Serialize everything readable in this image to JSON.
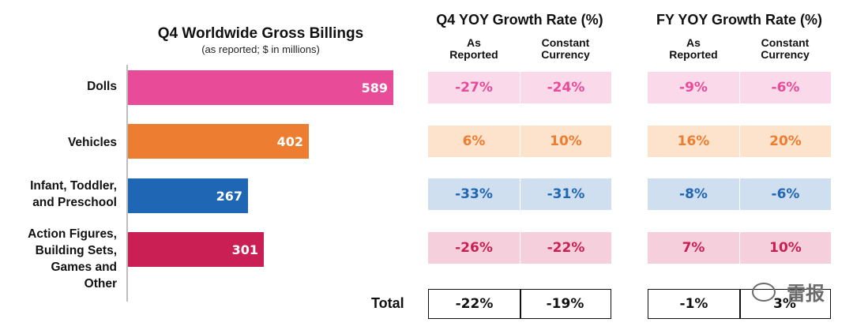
{
  "chart_data": {
    "type": "bar",
    "orientation": "horizontal",
    "title": "Q4 Worldwide Gross Billings",
    "subtitle": "(as reported; $ in millions)",
    "categories": [
      "Dolls",
      "Vehicles",
      "Infant, Toddler, and Preschool",
      "Action Figures, Building Sets, Games and Other"
    ],
    "category_lines": [
      [
        "Dolls"
      ],
      [
        "Vehicles"
      ],
      [
        "Infant, Toddler,",
        "and Preschool"
      ],
      [
        "Action Figures,",
        "Building Sets,",
        "Games and",
        "Other"
      ]
    ],
    "values": [
      589,
      402,
      267,
      301
    ],
    "value_labels": [
      "589",
      "402",
      "267",
      "301"
    ],
    "xlim": [
      0,
      589
    ]
  },
  "colors": {
    "bars": [
      "#e84c98",
      "#ed7d31",
      "#1f67b5",
      "#c91f55"
    ],
    "cell_bg": [
      "#fad9ea",
      "#fde3cc",
      "#cfdff0",
      "#f5d0dc"
    ],
    "cell_text": [
      "#e84c98",
      "#ed7d31",
      "#1f67b5",
      "#c91f55"
    ]
  },
  "growth": {
    "q4_title": "Q4 YOY Growth Rate (%)",
    "fy_title": "FY YOY Growth Rate (%)",
    "col_as_reported": "As Reported",
    "col_constant_currency": "Constant Currency",
    "q4_rows": [
      [
        "-27%",
        "-24%"
      ],
      [
        "6%",
        "10%"
      ],
      [
        "-33%",
        "-31%"
      ],
      [
        "-26%",
        "-22%"
      ]
    ],
    "fy_rows": [
      [
        "-9%",
        "-6%"
      ],
      [
        "16%",
        "20%"
      ],
      [
        "-8%",
        "-6%"
      ],
      [
        "7%",
        "10%"
      ]
    ],
    "total_label": "Total",
    "q4_total": [
      "-22%",
      "-19%"
    ],
    "fy_total": [
      "-1%",
      "3%"
    ]
  },
  "watermark": "雷报"
}
